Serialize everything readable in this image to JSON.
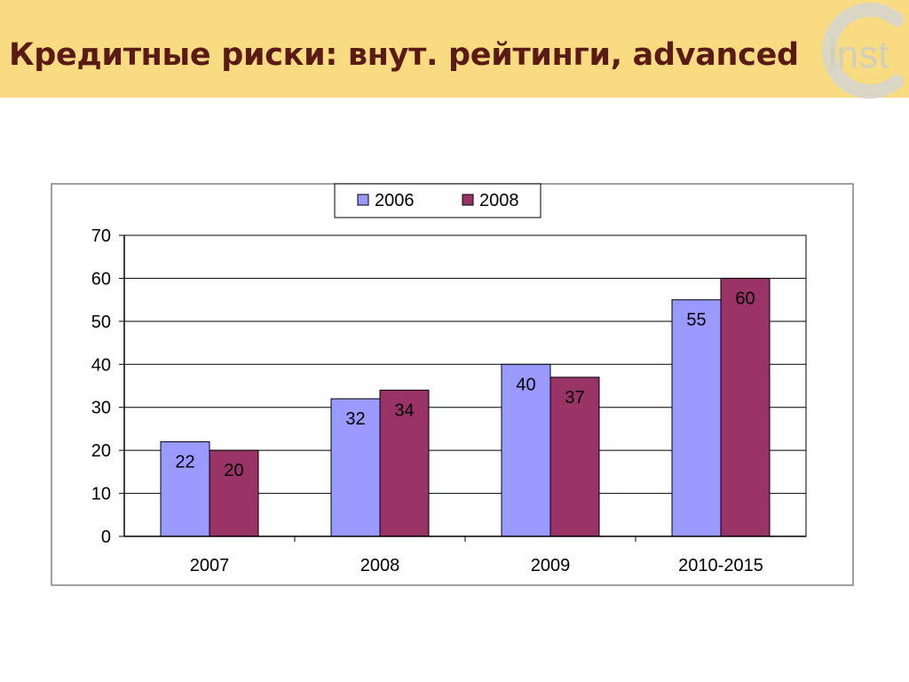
{
  "slide": {
    "title": "Кредитные риски: внут. рейтинги, advanced",
    "logo_text": "inst",
    "colors": {
      "header_bg": "#f9dc82",
      "title": "#5a1a16",
      "logo": "#d9d6c6"
    }
  },
  "chart_data": {
    "type": "bar",
    "title": "",
    "xlabel": "",
    "ylabel": "",
    "categories": [
      "2007",
      "2008",
      "2009",
      "2010-2015"
    ],
    "series": [
      {
        "name": "2006",
        "color": "#9999ff",
        "values": [
          22,
          32,
          40,
          55
        ]
      },
      {
        "name": "2008",
        "color": "#993366",
        "values": [
          20,
          34,
          37,
          60
        ]
      }
    ],
    "ylim": [
      0,
      70
    ],
    "yticks": [
      0,
      10,
      20,
      30,
      40,
      50,
      60,
      70
    ],
    "grid": true,
    "legend": "top-center",
    "data_labels": true
  }
}
